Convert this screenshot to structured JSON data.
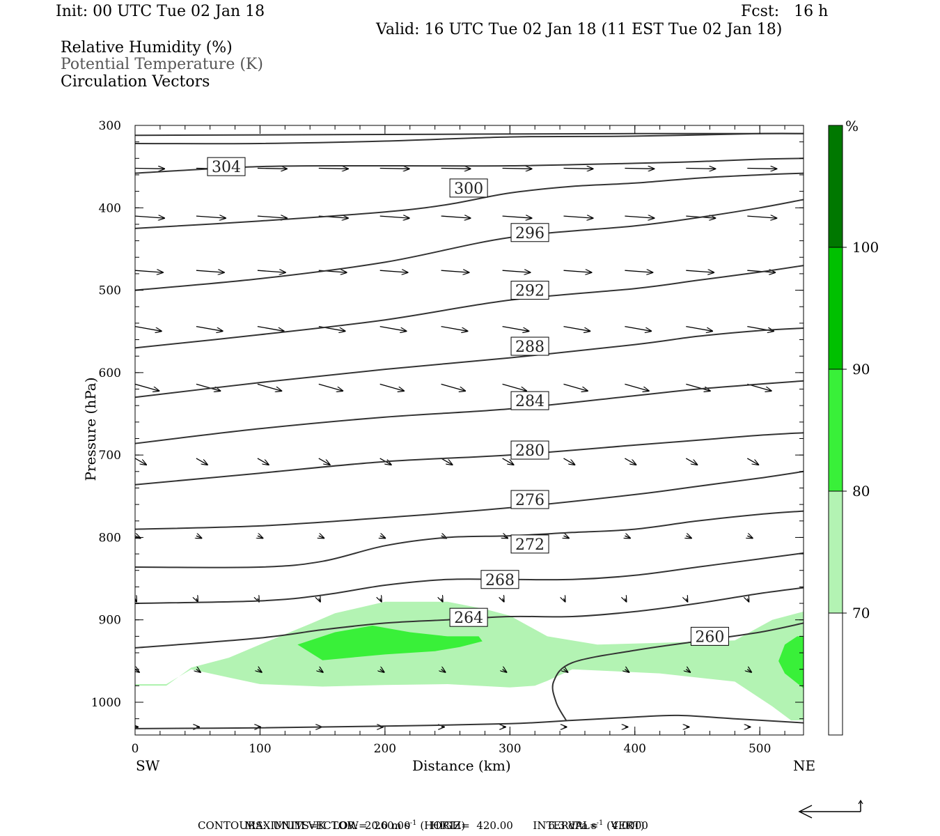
{
  "header": {
    "init": "Init: 00 UTC Tue 02 Jan 18",
    "fcst": "Fcst:   16 h",
    "valid": "Valid: 16 UTC Tue 02 Jan 18 (11 EST Tue 02 Jan 18)",
    "legend_lines": [
      "Relative Humidity (%)",
      "Potential Temperature (K)",
      "Circulation Vectors"
    ]
  },
  "footer": {
    "max_vector_label": "MAXIMUM VECTOR:",
    "horiz": "20.0 m s",
    "horiz_unit": "(HORIZ)",
    "vert": "6.3 dPa s",
    "vert_unit": "(VERT)",
    "exponent": "-1",
    "contours": "CONTOURS:  UNITS=K  LOW=  260.00      HIGH=  420.00      INTERVAL=    4.0000"
  },
  "colors": {
    "rh_70": "#b3f3b3",
    "rh_80": "#39f039",
    "rh_90": "#00c000",
    "rh_100": "#007800",
    "contour": "#333333"
  },
  "chart_data": {
    "type": "cross-section",
    "xlabel": "Distance (km)",
    "ylabel": "Pressure (hPa)",
    "x_left_label": "SW",
    "x_right_label": "NE",
    "xlim": [
      0,
      535
    ],
    "ylim": [
      1032,
      300
    ],
    "x_ticks": [
      "0",
      "100",
      "200",
      "300",
      "400",
      "500"
    ],
    "y_ticks": [
      "300",
      "400",
      "500",
      "600",
      "700",
      "800",
      "900",
      "1000"
    ],
    "colorbar": {
      "unit": "%",
      "labels": [
        "100",
        "90",
        "80",
        "70"
      ],
      "levels": [
        70,
        80,
        90,
        100
      ]
    },
    "theta_contours": [
      {
        "label": "260",
        "points": [
          [
            0,
            1032
          ],
          [
            100,
            1031
          ],
          [
            200,
            1029
          ],
          [
            300,
            1026
          ],
          [
            350,
            1022
          ],
          [
            400,
            1018
          ],
          [
            435,
            1016
          ],
          [
            480,
            1020
          ],
          [
            535,
            1025
          ]
        ]
      },
      {
        "label": "260",
        "points": [
          [
            345,
            1022
          ],
          [
            337,
            1000
          ],
          [
            335,
            975
          ],
          [
            350,
            952
          ],
          [
            400,
            937
          ],
          [
            450,
            926
          ],
          [
            500,
            915
          ],
          [
            535,
            904
          ]
        ]
      },
      {
        "label": "264",
        "points": [
          [
            0,
            934
          ],
          [
            100,
            922
          ],
          [
            150,
            912
          ],
          [
            200,
            904
          ],
          [
            250,
            900
          ],
          [
            300,
            896
          ],
          [
            350,
            896
          ],
          [
            400,
            890
          ],
          [
            450,
            880
          ],
          [
            500,
            868
          ],
          [
            535,
            861
          ]
        ]
      },
      {
        "label": "268",
        "points": [
          [
            0,
            880
          ],
          [
            100,
            877
          ],
          [
            150,
            870
          ],
          [
            200,
            858
          ],
          [
            250,
            851
          ],
          [
            300,
            851
          ],
          [
            350,
            851
          ],
          [
            400,
            846
          ],
          [
            450,
            836
          ],
          [
            500,
            826
          ],
          [
            535,
            819
          ]
        ]
      },
      {
        "label": "272",
        "points": [
          [
            0,
            836
          ],
          [
            100,
            836
          ],
          [
            150,
            829
          ],
          [
            200,
            810
          ],
          [
            250,
            800
          ],
          [
            300,
            798
          ],
          [
            350,
            794
          ],
          [
            400,
            790
          ],
          [
            450,
            780
          ],
          [
            500,
            772
          ],
          [
            535,
            768
          ]
        ]
      },
      {
        "label": "276",
        "points": [
          [
            0,
            790
          ],
          [
            100,
            786
          ],
          [
            200,
            776
          ],
          [
            300,
            764
          ],
          [
            400,
            748
          ],
          [
            450,
            738
          ],
          [
            500,
            728
          ],
          [
            535,
            720
          ]
        ]
      },
      {
        "label": "280",
        "points": [
          [
            0,
            736
          ],
          [
            100,
            722
          ],
          [
            200,
            708
          ],
          [
            300,
            700
          ],
          [
            400,
            688
          ],
          [
            450,
            682
          ],
          [
            500,
            676
          ],
          [
            535,
            673
          ]
        ]
      },
      {
        "label": "284",
        "points": [
          [
            0,
            686
          ],
          [
            100,
            668
          ],
          [
            200,
            654
          ],
          [
            300,
            644
          ],
          [
            400,
            628
          ],
          [
            450,
            620
          ],
          [
            500,
            614
          ],
          [
            535,
            610
          ]
        ]
      },
      {
        "label": "288",
        "points": [
          [
            0,
            630
          ],
          [
            100,
            612
          ],
          [
            200,
            596
          ],
          [
            300,
            582
          ],
          [
            400,
            566
          ],
          [
            450,
            556
          ],
          [
            500,
            549
          ],
          [
            535,
            546
          ]
        ]
      },
      {
        "label": "292",
        "points": [
          [
            0,
            570
          ],
          [
            100,
            554
          ],
          [
            200,
            536
          ],
          [
            300,
            512
          ],
          [
            400,
            498
          ],
          [
            450,
            488
          ],
          [
            500,
            478
          ],
          [
            535,
            470
          ]
        ]
      },
      {
        "label": "296",
        "points": [
          [
            0,
            500
          ],
          [
            100,
            486
          ],
          [
            200,
            466
          ],
          [
            300,
            436
          ],
          [
            400,
            422
          ],
          [
            450,
            412
          ],
          [
            500,
            400
          ],
          [
            535,
            390
          ]
        ]
      },
      {
        "label": "300",
        "points": [
          [
            0,
            425
          ],
          [
            100,
            416
          ],
          [
            200,
            405
          ],
          [
            250,
            396
          ],
          [
            300,
            382
          ],
          [
            350,
            374
          ],
          [
            400,
            370
          ],
          [
            450,
            364
          ],
          [
            500,
            360
          ],
          [
            535,
            358
          ]
        ]
      },
      {
        "label": "304",
        "points": [
          [
            0,
            358
          ],
          [
            100,
            350
          ],
          [
            200,
            349
          ],
          [
            300,
            349
          ],
          [
            400,
            346
          ],
          [
            450,
            344
          ],
          [
            500,
            341
          ],
          [
            535,
            340
          ]
        ]
      },
      {
        "label": "",
        "points": [
          [
            0,
            322
          ],
          [
            100,
            322
          ],
          [
            200,
            319
          ],
          [
            300,
            314
          ],
          [
            400,
            313
          ],
          [
            500,
            310
          ],
          [
            535,
            310
          ]
        ]
      },
      {
        "label": "",
        "points": [
          [
            0,
            312
          ],
          [
            200,
            311
          ],
          [
            400,
            310
          ],
          [
            535,
            310
          ]
        ]
      }
    ],
    "rh_regions": [
      {
        "level": 70,
        "points": [
          [
            0,
            980
          ],
          [
            25,
            980
          ],
          [
            45,
            958
          ],
          [
            75,
            946
          ],
          [
            100,
            930
          ],
          [
            140,
            905
          ],
          [
            160,
            892
          ],
          [
            200,
            878
          ],
          [
            250,
            878
          ],
          [
            280,
            887
          ],
          [
            300,
            895
          ],
          [
            330,
            920
          ],
          [
            370,
            930
          ],
          [
            420,
            928
          ],
          [
            480,
            925
          ],
          [
            510,
            900
          ],
          [
            535,
            890
          ],
          [
            535,
            1022
          ],
          [
            525,
            1022
          ],
          [
            510,
            1005
          ],
          [
            480,
            975
          ],
          [
            420,
            965
          ],
          [
            350,
            960
          ],
          [
            330,
            974
          ],
          [
            320,
            980
          ],
          [
            300,
            982
          ],
          [
            250,
            978
          ],
          [
            200,
            979
          ],
          [
            150,
            981
          ],
          [
            100,
            978
          ],
          [
            75,
            970
          ],
          [
            45,
            960
          ],
          [
            25,
            978
          ],
          [
            0,
            978
          ]
        ]
      },
      {
        "level": 80,
        "points": [
          [
            130,
            930
          ],
          [
            160,
            915
          ],
          [
            190,
            907
          ],
          [
            220,
            915
          ],
          [
            250,
            920
          ],
          [
            275,
            920
          ],
          [
            278,
            926
          ],
          [
            260,
            933
          ],
          [
            240,
            938
          ],
          [
            200,
            942
          ],
          [
            150,
            949
          ]
        ]
      },
      {
        "level": 80,
        "points": [
          [
            535,
            920
          ],
          [
            530,
            920
          ],
          [
            520,
            930
          ],
          [
            515,
            950
          ],
          [
            520,
            965
          ],
          [
            535,
            983
          ]
        ]
      }
    ],
    "label_positions": [
      {
        "label": "304",
        "x": 73,
        "p": 350
      },
      {
        "label": "300",
        "x": 267,
        "p": 376
      },
      {
        "label": "296",
        "x": 316,
        "p": 430
      },
      {
        "label": "292",
        "x": 316,
        "p": 500
      },
      {
        "label": "288",
        "x": 316,
        "p": 568
      },
      {
        "label": "284",
        "x": 316,
        "p": 634
      },
      {
        "label": "280",
        "x": 316,
        "p": 694
      },
      {
        "label": "276",
        "x": 316,
        "p": 754
      },
      {
        "label": "272",
        "x": 316,
        "p": 808
      },
      {
        "label": "268",
        "x": 292,
        "p": 851
      },
      {
        "label": "264",
        "x": 267,
        "p": 897
      },
      {
        "label": "260",
        "x": 460,
        "p": 920
      }
    ],
    "vector_rows": [
      {
        "p": 352,
        "dx": 1.0,
        "dy": 0.02
      },
      {
        "p": 410,
        "dx": 1.0,
        "dy": 0.07
      },
      {
        "p": 476,
        "dx": 0.95,
        "dy": 0.07
      },
      {
        "p": 544,
        "dx": 0.9,
        "dy": 0.16
      },
      {
        "p": 614,
        "dx": 0.82,
        "dy": 0.23
      },
      {
        "p": 704,
        "dx": 0.38,
        "dy": 0.22
      },
      {
        "p": 798,
        "dx": 0.18,
        "dy": 0.08
      },
      {
        "p": 874,
        "dx": 0.05,
        "dy": 0.11
      },
      {
        "p": 960,
        "dx": 0.14,
        "dy": 0.1
      },
      {
        "p": 1030,
        "dx": 0.1,
        "dy": 0.0
      }
    ]
  }
}
